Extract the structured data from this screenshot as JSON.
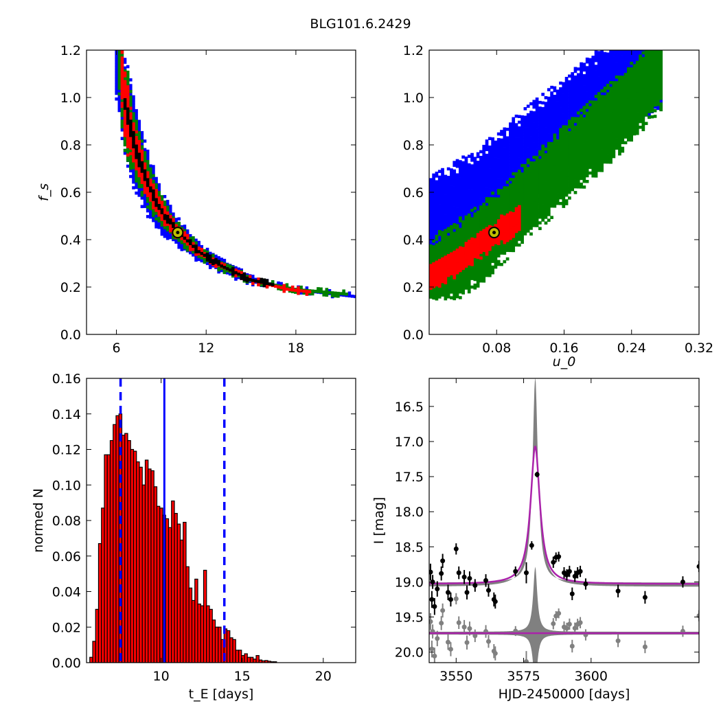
{
  "figure": {
    "title": "BLG101.6.2429"
  },
  "colors": {
    "blue": "#0000ff",
    "green": "#008000",
    "red": "#ff0000",
    "black": "#000000",
    "gray": "#808080",
    "magenta": "#aa22aa",
    "marker": "#bfbf00"
  },
  "chart_data": [
    {
      "id": "ax_te_fs",
      "type": "scatter",
      "title": "",
      "xlabel": "",
      "ylabel": "f_s",
      "xlim": [
        4,
        22
      ],
      "ylim": [
        0.0,
        1.2
      ],
      "xticks": [
        "6",
        "12",
        "18"
      ],
      "yticks": [
        "0.0",
        "0.2",
        "0.4",
        "0.6",
        "0.8",
        "1.0",
        "1.2"
      ],
      "grid": false,
      "density_bands": [
        {
          "level": "outer",
          "color": "blue",
          "x": [
            5.9,
            6.5,
            7.2,
            8.0,
            9.0,
            10.0,
            11.5,
            13.0,
            15.0,
            18.0,
            22.0
          ],
          "y": [
            1.17,
            0.98,
            0.8,
            0.65,
            0.52,
            0.44,
            0.35,
            0.29,
            0.23,
            0.19,
            0.16
          ],
          "halfwidth": 0.9
        },
        {
          "level": "middle",
          "color": "green",
          "x": [
            6.1,
            6.5,
            7.2,
            8.0,
            9.0,
            10.0,
            11.5,
            13.0,
            15.0,
            18.0,
            21.5
          ],
          "y": [
            1.17,
            0.98,
            0.8,
            0.65,
            0.52,
            0.44,
            0.35,
            0.29,
            0.23,
            0.19,
            0.17
          ],
          "halfwidth": 0.65
        },
        {
          "level": "inner",
          "color": "red",
          "x": [
            6.3,
            6.5,
            7.2,
            8.0,
            9.0,
            10.0,
            11.5,
            13.0,
            15.0,
            17.5,
            19.0
          ],
          "y": [
            1.15,
            0.98,
            0.8,
            0.65,
            0.52,
            0.44,
            0.35,
            0.29,
            0.23,
            0.19,
            0.18
          ],
          "halfwidth": 0.42
        },
        {
          "level": "core",
          "color": "black",
          "x": [
            6.5,
            7.2,
            8.0,
            9.0,
            10.0,
            11.5,
            13.0,
            15.0,
            16.5
          ],
          "y": [
            0.99,
            0.8,
            0.65,
            0.52,
            0.44,
            0.35,
            0.29,
            0.23,
            0.21
          ],
          "halfwidth": 0.15
        }
      ],
      "best_fit": {
        "x": 10.1,
        "y": 0.43
      }
    },
    {
      "id": "ax_u0_fs",
      "type": "scatter",
      "title": "",
      "xlabel": "u_0",
      "ylabel": "",
      "xlim": [
        0.0,
        0.32
      ],
      "ylim": [
        0.0,
        1.2
      ],
      "xticks": [
        "0.08",
        "0.16",
        "0.24",
        "0.32"
      ],
      "yticks": [
        "0.0",
        "0.2",
        "0.4",
        "0.6",
        "0.8",
        "1.0",
        "1.2"
      ],
      "grid": false,
      "density_bands": [
        {
          "level": "outer",
          "color": "blue",
          "x": [
            0.0,
            0.06,
            0.12,
            0.18,
            0.24,
            0.275
          ],
          "y": [
            0.45,
            0.58,
            0.76,
            0.93,
            1.1,
            1.17
          ],
          "halfwidth": 0.22
        },
        {
          "level": "middle",
          "color": "green",
          "x": [
            0.0,
            0.06,
            0.12,
            0.18,
            0.24,
            0.275
          ],
          "y": [
            0.24,
            0.38,
            0.58,
            0.78,
            0.98,
            1.12
          ],
          "halfwidth": 0.17
        },
        {
          "level": "inner",
          "color": "red",
          "x": [
            0.0,
            0.03,
            0.06,
            0.09,
            0.11
          ],
          "y": [
            0.24,
            0.3,
            0.38,
            0.45,
            0.5
          ],
          "halfwidth": 0.06
        }
      ],
      "best_fit": {
        "x": 0.077,
        "y": 0.43
      }
    },
    {
      "id": "ax_hist",
      "type": "bar",
      "title": "",
      "xlabel": "t_E [days]",
      "ylabel": "normed N",
      "xlim": [
        5.4,
        22.0
      ],
      "ylim": [
        0.0,
        0.16
      ],
      "xticks": [
        "10",
        "15",
        "20"
      ],
      "yticks": [
        "0.00",
        "0.02",
        "0.04",
        "0.06",
        "0.08",
        "0.10",
        "0.12",
        "0.14",
        "0.16"
      ],
      "grid": false,
      "bin_start": 5.6,
      "bin_width": 0.18,
      "values": [
        0.003,
        0.012,
        0.03,
        0.067,
        0.087,
        0.117,
        0.117,
        0.125,
        0.134,
        0.139,
        0.14,
        0.128,
        0.129,
        0.125,
        0.12,
        0.119,
        0.113,
        0.11,
        0.1,
        0.114,
        0.109,
        0.108,
        0.099,
        0.088,
        0.087,
        0.083,
        0.081,
        0.076,
        0.091,
        0.084,
        0.078,
        0.069,
        0.079,
        0.054,
        0.042,
        0.035,
        0.047,
        0.033,
        0.032,
        0.052,
        0.032,
        0.03,
        0.024,
        0.02,
        0.02,
        0.013,
        0.019,
        0.018,
        0.014,
        0.013,
        0.007,
        0.007,
        0.004,
        0.005,
        0.003,
        0.003,
        0.002,
        0.004,
        0.0015,
        0.001,
        0.0012,
        0.0008,
        0.0005,
        0.0005
      ],
      "median_line": 10.2,
      "interval_lines": [
        7.5,
        13.9
      ]
    },
    {
      "id": "ax_lightcurve",
      "type": "line",
      "title": "",
      "xlabel": "HJD-2450000 [days]",
      "ylabel": "I [mag]",
      "xlim": [
        3540,
        3640
      ],
      "ylim": [
        20.15,
        16.1
      ],
      "xticks": [
        "3550",
        "3575",
        "3600"
      ],
      "yticks": [
        "16.5",
        "17.0",
        "17.5",
        "18.0",
        "18.5",
        "19.0",
        "19.5",
        "20.0"
      ],
      "grid": false,
      "model": {
        "t0": 3579.3,
        "baseline": 19.03,
        "peak": 17.07,
        "width": 2.1
      },
      "model_band": {
        "peak": 16.1,
        "width": 1.2
      },
      "residual_baseline": 19.73,
      "residual_band": {
        "peak": 18.8,
        "width": 0.9
      },
      "data_points": [
        {
          "t": 3540.5,
          "mag": 18.86,
          "err": 0.12
        },
        {
          "t": 3541.0,
          "mag": 19.25,
          "err": 0.12
        },
        {
          "t": 3541.3,
          "mag": 19.0,
          "err": 0.1
        },
        {
          "t": 3542.0,
          "mag": 19.35,
          "err": 0.12
        },
        {
          "t": 3543.0,
          "mag": 19.1,
          "err": 0.11
        },
        {
          "t": 3544.5,
          "mag": 18.88,
          "err": 0.1
        },
        {
          "t": 3545.0,
          "mag": 18.7,
          "err": 0.1
        },
        {
          "t": 3547.0,
          "mag": 19.15,
          "err": 0.11
        },
        {
          "t": 3548.0,
          "mag": 19.25,
          "err": 0.1
        },
        {
          "t": 3550.0,
          "mag": 18.53,
          "err": 0.08
        },
        {
          "t": 3551.0,
          "mag": 18.87,
          "err": 0.09
        },
        {
          "t": 3553.0,
          "mag": 18.93,
          "err": 0.1
        },
        {
          "t": 3554.0,
          "mag": 19.15,
          "err": 0.1
        },
        {
          "t": 3555.0,
          "mag": 18.95,
          "err": 0.1
        },
        {
          "t": 3557.0,
          "mag": 19.05,
          "err": 0.09
        },
        {
          "t": 3561.0,
          "mag": 18.98,
          "err": 0.09
        },
        {
          "t": 3562.0,
          "mag": 19.12,
          "err": 0.09
        },
        {
          "t": 3564.0,
          "mag": 19.25,
          "err": 0.1
        },
        {
          "t": 3564.5,
          "mag": 19.28,
          "err": 0.1
        },
        {
          "t": 3572.0,
          "mag": 18.85,
          "err": 0.07
        },
        {
          "t": 3576.0,
          "mag": 18.87,
          "err": 0.15
        },
        {
          "t": 3578.0,
          "mag": 18.48,
          "err": 0.06
        },
        {
          "t": 3580.0,
          "mag": 17.47,
          "err": 0.04
        },
        {
          "t": 3586.0,
          "mag": 18.72,
          "err": 0.08
        },
        {
          "t": 3587.0,
          "mag": 18.65,
          "err": 0.07
        },
        {
          "t": 3588.0,
          "mag": 18.64,
          "err": 0.07
        },
        {
          "t": 3590.0,
          "mag": 18.87,
          "err": 0.08
        },
        {
          "t": 3591.0,
          "mag": 18.9,
          "err": 0.08
        },
        {
          "t": 3592.0,
          "mag": 18.85,
          "err": 0.08
        },
        {
          "t": 3593.0,
          "mag": 19.17,
          "err": 0.09
        },
        {
          "t": 3594.0,
          "mag": 18.92,
          "err": 0.08
        },
        {
          "t": 3595.0,
          "mag": 18.87,
          "err": 0.08
        },
        {
          "t": 3596.0,
          "mag": 18.85,
          "err": 0.08
        },
        {
          "t": 3598.0,
          "mag": 19.03,
          "err": 0.08
        },
        {
          "t": 3610.0,
          "mag": 19.13,
          "err": 0.09
        },
        {
          "t": 3620.0,
          "mag": 19.22,
          "err": 0.09
        },
        {
          "t": 3634.0,
          "mag": 19.0,
          "err": 0.08
        },
        {
          "t": 3640.0,
          "mag": 18.78,
          "err": 0.08
        }
      ]
    }
  ]
}
